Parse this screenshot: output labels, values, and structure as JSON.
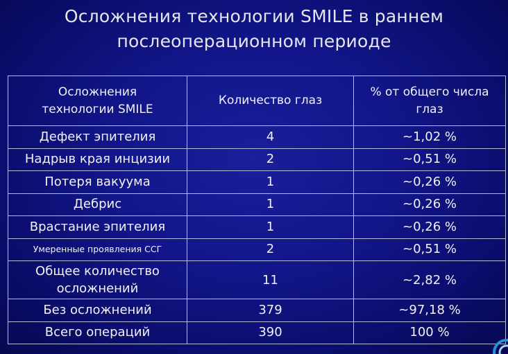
{
  "slide": {
    "title_line1": "Осложнения технологии SMILE в раннем",
    "title_line2": "послеоперационном периоде"
  },
  "table": {
    "headers": {
      "col1_line1": "Осложнения",
      "col1_line2": "технологии SMILE",
      "col2": "Количество глаз",
      "col3_line1": "% от общего числа",
      "col3_line2": "глаз"
    },
    "rows": [
      {
        "label": "Дефект эпителия",
        "count": "4",
        "percent": "~1,02 %"
      },
      {
        "label": "Надрыв края инцизии",
        "count": "2",
        "percent": "~0,51 %"
      },
      {
        "label": "Потеря вакуума",
        "count": "1",
        "percent": "~0,26 %"
      },
      {
        "label": "Дебрис",
        "count": "1",
        "percent": "~0,26 %"
      },
      {
        "label": "Врастание эпителия",
        "count": "1",
        "percent": "~0,26 %"
      },
      {
        "label": "Умеренные проявления ССГ",
        "count": "2",
        "percent": "~0,51 %"
      },
      {
        "label_line1": "Общее количество",
        "label_line2": "осложнений",
        "count": "11",
        "percent": "~2,82 %"
      },
      {
        "label": "Без осложнений",
        "count": "379",
        "percent": "~97,18 %"
      },
      {
        "label": "Всего операций",
        "count": "390",
        "percent": "100 %"
      }
    ]
  },
  "colors": {
    "background": "#12168a",
    "text": "#f2f2f6",
    "border": "#b9bcd8",
    "logo": "#2a8fd6"
  },
  "icons": {
    "corner_logo": "corner-logo-icon"
  }
}
